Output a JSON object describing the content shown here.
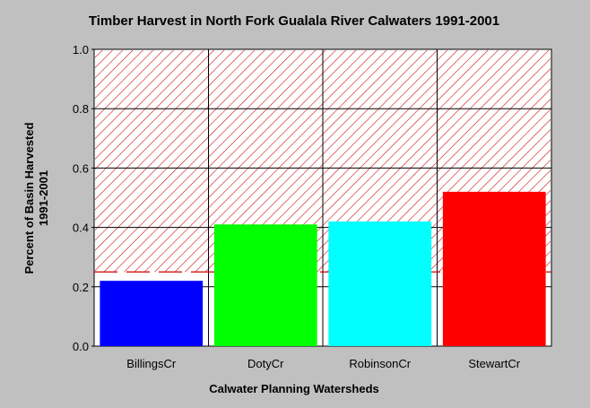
{
  "chart_data": {
    "type": "bar",
    "title": "Timber Harvest in North Fork Gualala River Calwaters 1991-2001",
    "xlabel": "Calwater Planning Watersheds",
    "ylabel_line1": "Percent of Basin Harvested",
    "ylabel_line2": "1991-2001",
    "categories": [
      "BillingsCr",
      "DotyCr",
      "RobinsonCr",
      "StewartCr"
    ],
    "values": [
      0.22,
      0.41,
      0.42,
      0.52
    ],
    "colors": [
      "#0000ff",
      "#00ff00",
      "#00ffff",
      "#ff0000"
    ],
    "ylim": [
      0,
      1.0
    ],
    "yticks": [
      "0.0",
      "0.2",
      "0.4",
      "0.6",
      "0.8",
      "1.0"
    ],
    "threshold": 0.25,
    "threshold_color": "#cc0000",
    "grid": true,
    "legend": "none"
  }
}
